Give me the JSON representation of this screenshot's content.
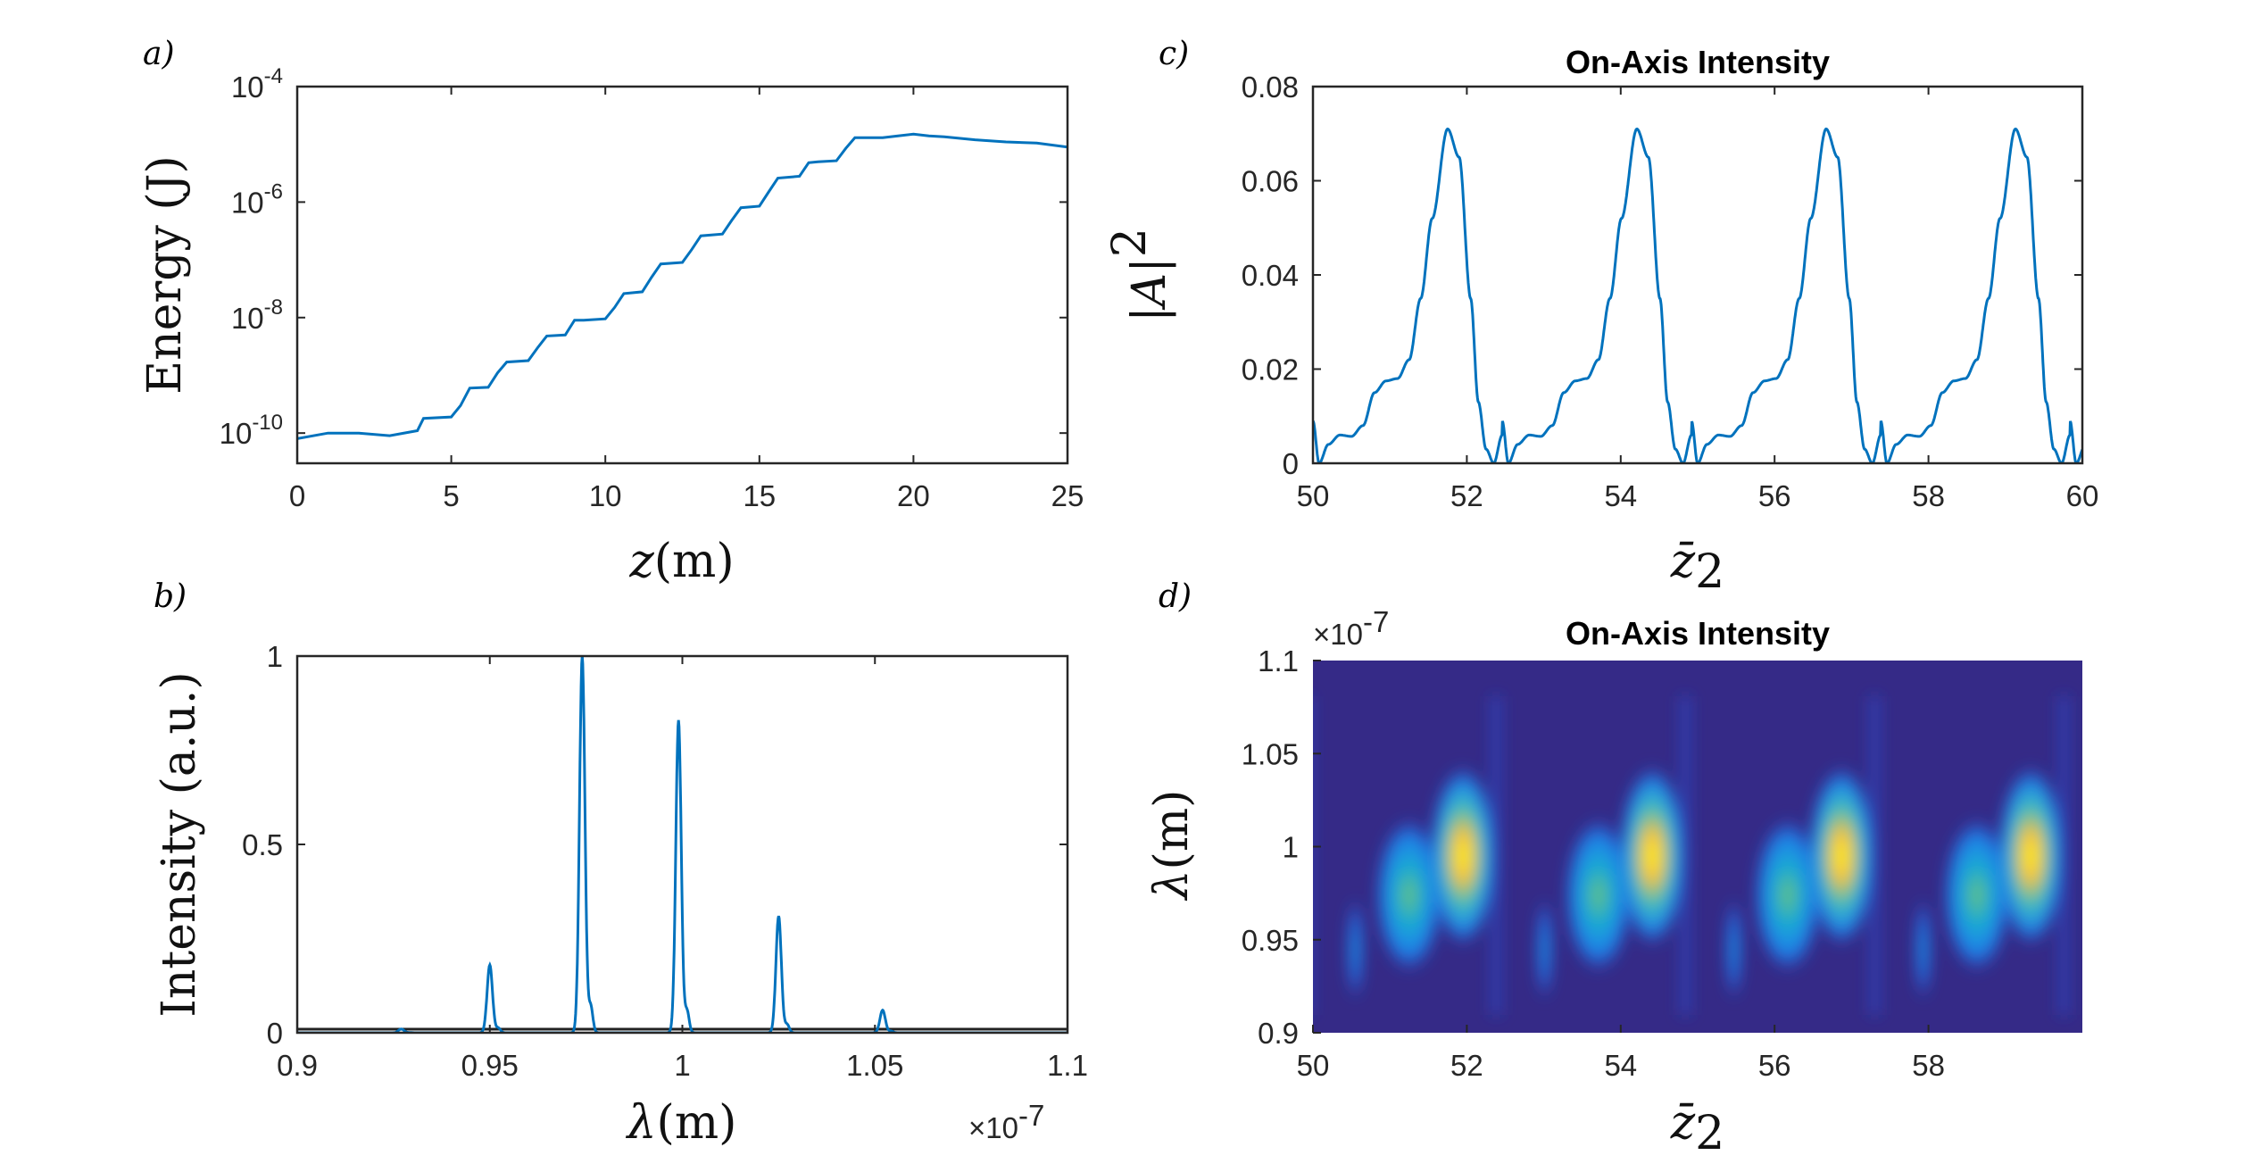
{
  "panels": {
    "a": {
      "label": "a)"
    },
    "b": {
      "label": "b)"
    },
    "c": {
      "label": "c)"
    },
    "d": {
      "label": "d)"
    }
  },
  "chart_data": [
    {
      "id": "a",
      "type": "line",
      "title": "",
      "xlabel_var": "z",
      "xlabel_unit": "(m)",
      "ylabel": "Energy (J)",
      "xlim": [
        0,
        25
      ],
      "ylim": [
        3e-11,
        0.0001
      ],
      "yscale": "log",
      "xticks": [
        0,
        5,
        10,
        15,
        20,
        25
      ],
      "xtick_labels": [
        "0",
        "5",
        "10",
        "15",
        "20",
        "25"
      ],
      "yticks": [
        1e-10,
        1e-08,
        1e-06,
        0.0001
      ],
      "ytick_labels": [
        {
          "base": "10",
          "exp": "-10"
        },
        {
          "base": "10",
          "exp": "-8"
        },
        {
          "base": "10",
          "exp": "-6"
        },
        {
          "base": "10",
          "exp": "-4"
        }
      ],
      "x": [
        0,
        1,
        2,
        3,
        3.9,
        4.1,
        5,
        5.3,
        5.6,
        6.2,
        6.5,
        6.8,
        7.5,
        7.8,
        8.1,
        8.7,
        9.0,
        9.3,
        10.0,
        10.3,
        10.6,
        11.2,
        11.5,
        11.8,
        12.5,
        12.8,
        13.1,
        13.8,
        14.1,
        14.4,
        15.0,
        15.3,
        15.6,
        16.3,
        16.6,
        16.9,
        17.5,
        17.8,
        18.1,
        19.0,
        19.5,
        20.0,
        20.5,
        21.0,
        22.0,
        23.0,
        24.0,
        25.0
      ],
      "y": [
        8e-11,
        1e-10,
        1e-10,
        9e-11,
        1.1e-10,
        1.8e-10,
        1.9e-10,
        3e-10,
        6e-10,
        6.2e-10,
        1.1e-09,
        1.7e-09,
        1.8e-09,
        3e-09,
        4.8e-09,
        5e-09,
        9e-09,
        9e-09,
        9.5e-09,
        1.5e-08,
        2.6e-08,
        2.8e-08,
        5e-08,
        8.5e-08,
        9e-08,
        1.5e-07,
        2.6e-07,
        2.8e-07,
        4.8e-07,
        8e-07,
        8.5e-07,
        1.5e-06,
        2.6e-06,
        2.8e-06,
        4.8e-06,
        5e-06,
        5.2e-06,
        8.5e-06,
        1.3e-05,
        1.3e-05,
        1.4e-05,
        1.5e-05,
        1.4e-05,
        1.35e-05,
        1.2e-05,
        1.1e-05,
        1.05e-05,
        9e-06
      ]
    },
    {
      "id": "b",
      "type": "line",
      "title": "",
      "xlabel_var": "λ",
      "xlabel_unit": "(m)",
      "ylabel": "Intensity (a.u.)",
      "xlim": [
        0.9,
        1.1
      ],
      "ylim": [
        0,
        1
      ],
      "x_multiplier": "×10",
      "x_multiplier_exp": "-7",
      "xticks": [
        0.9,
        0.95,
        1.0,
        1.05,
        1.1
      ],
      "xtick_labels": [
        "0.9",
        "0.95",
        "1",
        "1.05",
        "1.1"
      ],
      "yticks": [
        0,
        0.5,
        1
      ],
      "ytick_labels": [
        "0",
        "0.5",
        "1"
      ],
      "peaks": [
        {
          "center": 0.927,
          "height": 0.01
        },
        {
          "center": 0.95,
          "height": 0.18
        },
        {
          "center": 0.974,
          "height": 1.0
        },
        {
          "center": 0.999,
          "height": 0.83
        },
        {
          "center": 1.025,
          "height": 0.31
        },
        {
          "center": 1.052,
          "height": 0.06
        }
      ]
    },
    {
      "id": "c",
      "type": "line",
      "title": "On-Axis Intensity",
      "xlabel_var": "z̄",
      "xlabel_sub": "2",
      "ylabel_var": "|A|",
      "ylabel_sup": "2",
      "xlim": [
        50,
        60
      ],
      "ylim": [
        0,
        0.08
      ],
      "xticks": [
        50,
        52,
        54,
        56,
        58,
        60
      ],
      "xtick_labels": [
        "50",
        "52",
        "54",
        "56",
        "58",
        "60"
      ],
      "yticks": [
        0,
        0.02,
        0.04,
        0.06,
        0.08
      ],
      "ytick_labels": [
        "0",
        "0.02",
        "0.04",
        "0.06",
        "0.08"
      ],
      "period": 2.46,
      "first_x": 50,
      "cycle_x": [
        0,
        0.08,
        0.2,
        0.35,
        0.5,
        0.65,
        0.8,
        0.95,
        1.1,
        1.25,
        1.4,
        1.55,
        1.75,
        1.9,
        2.05,
        2.15,
        2.25,
        2.35,
        2.46
      ],
      "cycle_y": [
        0.009,
        0.0,
        0.004,
        0.006,
        0.0057,
        0.008,
        0.015,
        0.0175,
        0.018,
        0.022,
        0.035,
        0.052,
        0.071,
        0.065,
        0.035,
        0.013,
        0.003,
        0.0,
        0.006
      ]
    },
    {
      "id": "d",
      "type": "heatmap",
      "title": "On-Axis Intensity",
      "xlabel_var": "z̄",
      "xlabel_sub": "2",
      "ylabel_var": "λ",
      "ylabel_unit": "(m)",
      "xlim": [
        50,
        60
      ],
      "ylim": [
        0.9,
        1.1
      ],
      "y_multiplier": "×10",
      "y_multiplier_exp": "-7",
      "xticks": [
        50,
        52,
        54,
        56,
        58
      ],
      "xtick_labels": [
        "50",
        "52",
        "54",
        "56",
        "58"
      ],
      "yticks": [
        0.9,
        0.95,
        1.0,
        1.05,
        1.1
      ],
      "ytick_labels": [
        "0.9",
        "0.95",
        "1",
        "1.05",
        "1.1"
      ],
      "background_color": "#352A87",
      "period": 2.46,
      "blobs_per_cycle": [
        {
          "dx": 0.55,
          "y": 0.945,
          "w": 0.15,
          "h": 0.02,
          "value": 0.35
        },
        {
          "dx": 1.25,
          "y": 0.974,
          "w": 0.6,
          "h": 0.03,
          "value": 0.55
        },
        {
          "dx": 1.95,
          "y": 0.995,
          "w": 0.6,
          "h": 0.035,
          "value": 1.0
        }
      ]
    }
  ]
}
